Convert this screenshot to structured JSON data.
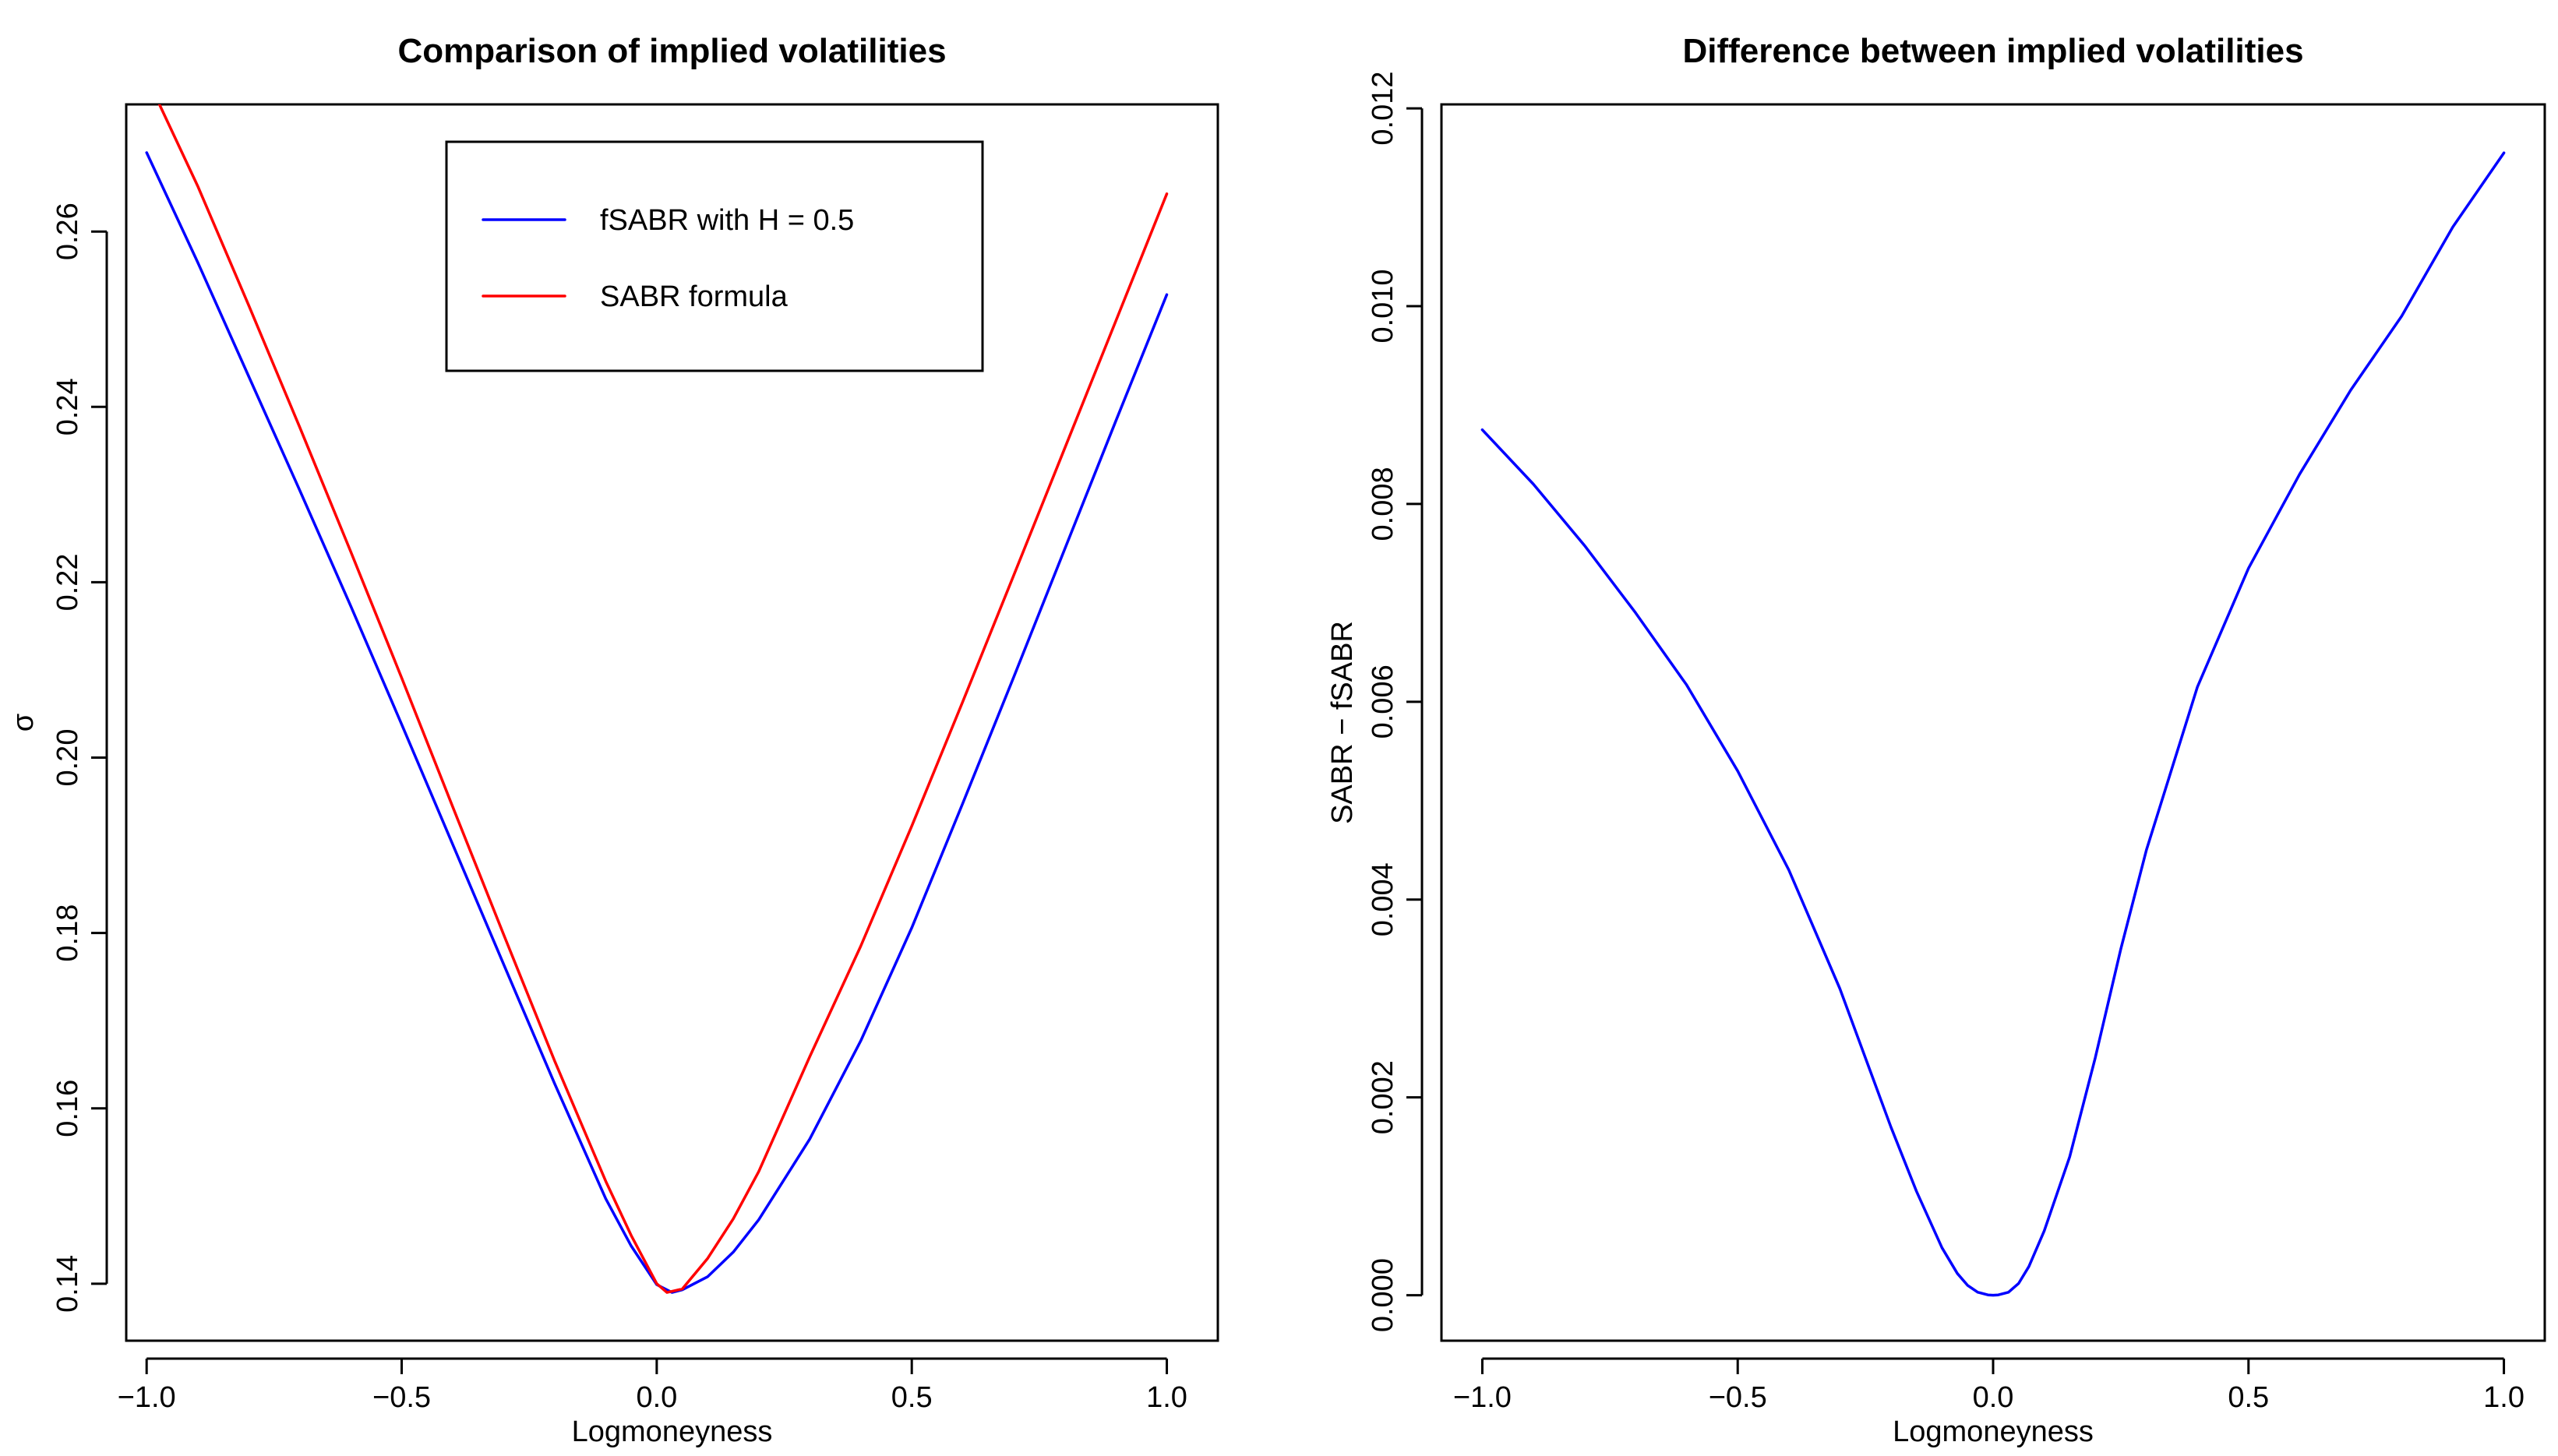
{
  "chart_data": [
    {
      "type": "line",
      "title": "Comparison of implied volatilities",
      "xlabel": "Logmoneyness",
      "ylabel": "σ",
      "xlim": [
        -1.04,
        1.1
      ],
      "ylim": [
        0.1335,
        0.2745
      ],
      "xticks": [
        -1.0,
        -0.5,
        0.0,
        0.5,
        1.0
      ],
      "xtick_labels": [
        "−1.0",
        "−0.5",
        "0.0",
        "0.5",
        "1.0"
      ],
      "yticks": [
        0.14,
        0.16,
        0.18,
        0.2,
        0.22,
        0.24,
        0.26
      ],
      "ytick_labels": [
        "0.14",
        "0.16",
        "0.18",
        "0.20",
        "0.22",
        "0.24",
        "0.26"
      ],
      "legend": {
        "position": "top-center",
        "entries": [
          {
            "label": "fSABR with H = 0.5",
            "color": "#0000ff"
          },
          {
            "label": "SABR formula",
            "color": "#ff0000"
          }
        ]
      },
      "series": [
        {
          "name": "fSABR with H = 0.5",
          "color": "#0000ff",
          "x": [
            -1.0,
            -0.9,
            -0.8,
            -0.7,
            -0.6,
            -0.5,
            -0.4,
            -0.3,
            -0.2,
            -0.1,
            -0.05,
            0.0,
            0.03,
            0.05,
            0.1,
            0.15,
            0.2,
            0.3,
            0.4,
            0.5,
            0.6,
            0.7,
            0.8,
            0.9,
            1.0
          ],
          "y": [
            0.269,
            0.2565,
            0.2435,
            0.2305,
            0.2173,
            0.2038,
            0.1901,
            0.1764,
            0.1628,
            0.1497,
            0.1443,
            0.1399,
            0.139,
            0.1393,
            0.1408,
            0.1436,
            0.1473,
            0.1565,
            0.1677,
            0.1806,
            0.1948,
            0.2092,
            0.2238,
            0.2384,
            0.2528
          ]
        },
        {
          "name": "SABR formula",
          "color": "#ff0000",
          "x": [
            -0.975,
            -0.9,
            -0.8,
            -0.7,
            -0.6,
            -0.5,
            -0.4,
            -0.3,
            -0.2,
            -0.1,
            -0.05,
            0.0,
            0.02,
            0.05,
            0.1,
            0.15,
            0.2,
            0.3,
            0.4,
            0.5,
            0.6,
            0.7,
            0.8,
            0.9,
            1.0
          ],
          "y": [
            0.2745,
            0.2652,
            0.2516,
            0.2377,
            0.2235,
            0.2091,
            0.1944,
            0.1798,
            0.1654,
            0.1517,
            0.1455,
            0.14,
            0.139,
            0.1394,
            0.1429,
            0.1474,
            0.1528,
            0.1659,
            0.1785,
            0.1922,
            0.2064,
            0.2208,
            0.2353,
            0.2498,
            0.2643
          ]
        }
      ]
    },
    {
      "type": "line",
      "title": "Difference between implied volatilities",
      "xlabel": "Logmoneyness",
      "ylabel": "SABR − fSABR",
      "xlim": [
        -1.08,
        1.08
      ],
      "ylim": [
        -0.00046,
        0.01204
      ],
      "xticks": [
        -1.0,
        -0.5,
        0.0,
        0.5,
        1.0
      ],
      "xtick_labels": [
        "−1.0",
        "−0.5",
        "0.0",
        "0.5",
        "1.0"
      ],
      "yticks": [
        0.0,
        0.002,
        0.004,
        0.006,
        0.008,
        0.01,
        0.012
      ],
      "ytick_labels": [
        "0.000",
        "0.002",
        "0.004",
        "0.006",
        "0.008",
        "0.010",
        "0.012"
      ],
      "series": [
        {
          "name": "SABR − fSABR",
          "color": "#0000ff",
          "x": [
            -1.0,
            -0.9,
            -0.8,
            -0.7,
            -0.6,
            -0.5,
            -0.4,
            -0.3,
            -0.2,
            -0.15,
            -0.1,
            -0.07,
            -0.05,
            -0.03,
            -0.01,
            0.0,
            0.01,
            0.03,
            0.05,
            0.07,
            0.1,
            0.15,
            0.2,
            0.25,
            0.3,
            0.4,
            0.5,
            0.6,
            0.7,
            0.8,
            0.9,
            1.0
          ],
          "y": [
            0.00875,
            0.0082,
            0.00758,
            0.0069,
            0.00617,
            0.0053,
            0.0043,
            0.0031,
            0.0017,
            0.00105,
            0.00048,
            0.00022,
            0.0001,
            3e-05,
            3e-06,
            0.0,
            3e-06,
            3e-05,
            0.00012,
            0.00029,
            0.00065,
            0.0014,
            0.0024,
            0.0035,
            0.0045,
            0.00615,
            0.00735,
            0.0083,
            0.00915,
            0.0099,
            0.0108,
            0.01155
          ]
        }
      ]
    }
  ]
}
